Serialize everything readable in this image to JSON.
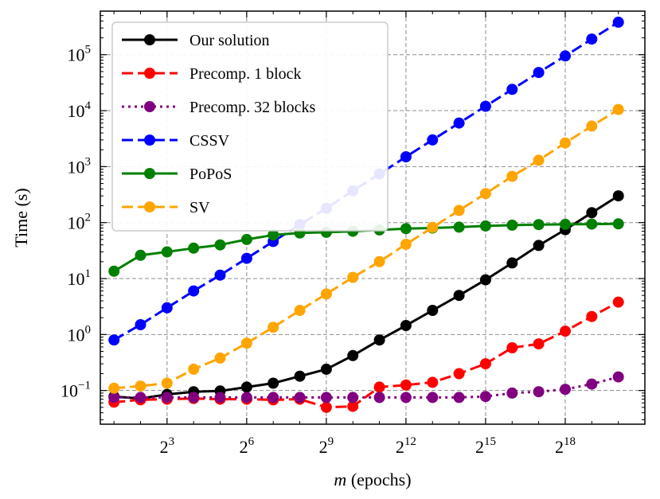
{
  "chart_data": {
    "type": "line",
    "xlabel_var": "m",
    "xlabel_rest": " (epochs)",
    "ylabel": "Time (s)",
    "x_scale": "log2",
    "y_scale": "log10",
    "grid": true,
    "legend_placement": "top-left",
    "xlim": [
      1.4,
      2097152
    ],
    "ylim": [
      0.025,
      600000
    ],
    "x": [
      2,
      4,
      8,
      16,
      32,
      64,
      128,
      256,
      512,
      1024,
      2048,
      4096,
      8192,
      16384,
      32768,
      65536,
      131072,
      262144,
      524288,
      1048576
    ],
    "x_ticks": [
      {
        "base": "2",
        "exp": "3",
        "value": 8
      },
      {
        "base": "2",
        "exp": "6",
        "value": 64
      },
      {
        "base": "2",
        "exp": "9",
        "value": 512
      },
      {
        "base": "2",
        "exp": "12",
        "value": 4096
      },
      {
        "base": "2",
        "exp": "15",
        "value": 32768
      },
      {
        "base": "2",
        "exp": "18",
        "value": 262144
      }
    ],
    "y_ticks": [
      {
        "base": "10",
        "exp": "−1",
        "value": 0.1
      },
      {
        "base": "10",
        "exp": "0",
        "value": 1
      },
      {
        "base": "10",
        "exp": "1",
        "value": 10
      },
      {
        "base": "10",
        "exp": "2",
        "value": 100
      },
      {
        "base": "10",
        "exp": "3",
        "value": 1000
      },
      {
        "base": "10",
        "exp": "4",
        "value": 10000
      },
      {
        "base": "10",
        "exp": "5",
        "value": 100000
      }
    ],
    "series": [
      {
        "name": "Our solution",
        "color": "#000000",
        "dash": "solid",
        "values": [
          0.078,
          0.072,
          0.085,
          0.095,
          0.098,
          0.115,
          0.135,
          0.18,
          0.24,
          0.42,
          0.8,
          1.45,
          2.7,
          5.0,
          9.5,
          19,
          39,
          75,
          150,
          300
        ]
      },
      {
        "name": "Precomp. 1 block",
        "color": "#ff0000",
        "dash": "dashed",
        "values": [
          0.062,
          0.068,
          0.07,
          0.072,
          0.07,
          0.07,
          0.068,
          0.07,
          0.05,
          0.052,
          0.115,
          0.125,
          0.14,
          0.2,
          0.3,
          0.58,
          0.68,
          1.15,
          2.1,
          3.8
        ]
      },
      {
        "name": "Precomp. 32 blocks",
        "color": "#800080",
        "dash": "dotted",
        "values": [
          0.075,
          0.075,
          0.075,
          0.075,
          0.075,
          0.075,
          0.075,
          0.075,
          0.075,
          0.075,
          0.075,
          0.075,
          0.075,
          0.075,
          0.078,
          0.09,
          0.095,
          0.105,
          0.13,
          0.175
        ]
      },
      {
        "name": "CSSV",
        "color": "#0000ff",
        "dash": "dashed",
        "values": [
          0.8,
          1.5,
          3.0,
          6.0,
          11.5,
          23,
          46,
          92,
          180,
          370,
          740,
          1500,
          3000,
          6000,
          12000,
          24000,
          48000,
          95000,
          190000,
          380000
        ]
      },
      {
        "name": "PoPoS",
        "color": "#008000",
        "dash": "solid",
        "values": [
          13.5,
          26,
          30,
          35,
          40,
          50,
          60,
          65,
          67,
          70,
          74,
          78,
          80,
          83,
          87,
          90,
          92,
          93,
          94,
          95
        ]
      },
      {
        "name": "SV",
        "color": "#ffa500",
        "dash": "dashed",
        "values": [
          0.11,
          0.12,
          0.135,
          0.24,
          0.38,
          0.7,
          1.35,
          2.7,
          5.3,
          10.5,
          20,
          41,
          82,
          165,
          330,
          670,
          1300,
          2650,
          5300,
          10500
        ]
      }
    ]
  }
}
